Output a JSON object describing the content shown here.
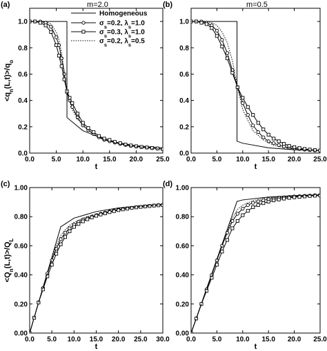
{
  "chart_data": [
    {
      "type": "line",
      "panel_tag": "(a)",
      "title": "m=2.0",
      "xlabel": "t",
      "ylabel": "<q_n(L,t)>/q_o",
      "xlim": [
        0,
        25
      ],
      "ylim": [
        0,
        1.1
      ],
      "xticks": [
        "0.0",
        "5.0",
        "10.0",
        "15.0",
        "20.0",
        "25.0"
      ],
      "yticks": [
        "0.0",
        "0.2",
        "0.4",
        "0.6",
        "0.8",
        "1.0"
      ],
      "grid": false,
      "legend_position": "top-right",
      "series": [
        {
          "name": "Homogeneous",
          "style": "solid",
          "marker": "none",
          "x": [
            0,
            7.0,
            7.0,
            10,
            15,
            20,
            25
          ],
          "y": [
            1.0,
            1.0,
            0.27,
            0.17,
            0.09,
            0.055,
            0.04
          ]
        },
        {
          "name": "σ_s=0.2, λ_s=1.0",
          "style": "solid",
          "marker": "circle",
          "x": [
            0,
            1,
            2,
            3,
            4,
            5,
            5.5,
            6,
            6.5,
            7,
            7.5,
            8,
            9,
            10,
            11,
            12,
            13,
            14,
            15,
            16,
            17,
            18,
            19,
            20,
            21,
            22,
            23,
            24,
            25
          ],
          "y": [
            1.0,
            1.0,
            1.0,
            0.99,
            0.96,
            0.88,
            0.82,
            0.72,
            0.6,
            0.46,
            0.4,
            0.35,
            0.27,
            0.21,
            0.175,
            0.145,
            0.12,
            0.1,
            0.09,
            0.08,
            0.07,
            0.062,
            0.055,
            0.05,
            0.045,
            0.042,
            0.038,
            0.035,
            0.03
          ]
        },
        {
          "name": "σ_s=0.3, λ_s=1.0",
          "style": "solid",
          "marker": "square",
          "x": [
            0,
            1,
            2,
            3,
            4,
            5,
            5.5,
            6,
            6.5,
            7,
            7.5,
            8,
            9,
            10,
            11,
            12,
            13,
            14,
            15,
            16,
            17,
            18,
            19,
            20,
            21,
            22,
            23,
            24,
            25
          ],
          "y": [
            1.0,
            1.0,
            0.99,
            0.97,
            0.92,
            0.82,
            0.74,
            0.66,
            0.56,
            0.47,
            0.42,
            0.38,
            0.3,
            0.23,
            0.19,
            0.16,
            0.13,
            0.11,
            0.1,
            0.085,
            0.075,
            0.065,
            0.058,
            0.052,
            0.047,
            0.043,
            0.039,
            0.035,
            0.03
          ]
        },
        {
          "name": "σ_s=0.2, λ_s=0.5",
          "style": "dotted",
          "marker": "none",
          "x": [
            0,
            1,
            2,
            3,
            4,
            5,
            5.5,
            6,
            6.5,
            7,
            7.5,
            8,
            9,
            10,
            12,
            14,
            16,
            18,
            20,
            22,
            25
          ],
          "y": [
            1.0,
            1.0,
            1.0,
            1.0,
            0.98,
            0.92,
            0.86,
            0.76,
            0.62,
            0.47,
            0.39,
            0.33,
            0.26,
            0.21,
            0.14,
            0.1,
            0.08,
            0.06,
            0.05,
            0.04,
            0.03
          ]
        }
      ]
    },
    {
      "type": "line",
      "panel_tag": "(b)",
      "title": "m=0.5",
      "xlabel": "t",
      "ylabel": "",
      "xlim": [
        0,
        25
      ],
      "ylim": [
        0,
        1.1
      ],
      "xticks": [
        "0.0",
        "5.0",
        "10.0",
        "15.0",
        "20.0",
        "25.0"
      ],
      "yticks": [
        "0.0",
        "0.2",
        "0.4",
        "0.6",
        "0.8",
        "1.0"
      ],
      "grid": false,
      "series": [
        {
          "name": "Homogeneous",
          "style": "solid",
          "marker": "none",
          "x": [
            0,
            8.9,
            8.9,
            10,
            15,
            20,
            25
          ],
          "y": [
            1.0,
            1.0,
            0.09,
            0.075,
            0.04,
            0.025,
            0.02
          ]
        },
        {
          "name": "σ_s=0.2, λ_s=1.0",
          "style": "solid",
          "marker": "circle",
          "x": [
            0,
            1,
            2,
            3,
            4,
            5,
            6,
            7,
            8,
            9,
            10,
            11,
            12,
            13,
            14,
            15,
            16,
            17,
            18,
            19,
            20,
            21,
            22,
            23,
            24,
            25
          ],
          "y": [
            1.0,
            1.0,
            1.0,
            0.99,
            0.97,
            0.93,
            0.86,
            0.76,
            0.63,
            0.5,
            0.38,
            0.29,
            0.21,
            0.16,
            0.12,
            0.09,
            0.075,
            0.06,
            0.05,
            0.04,
            0.035,
            0.03,
            0.026,
            0.023,
            0.02,
            0.018
          ]
        },
        {
          "name": "σ_s=0.3, λ_s=1.0",
          "style": "solid",
          "marker": "square",
          "x": [
            0,
            1,
            2,
            3,
            4,
            5,
            6,
            7,
            8,
            9,
            10,
            11,
            12,
            13,
            14,
            15,
            16,
            17,
            18,
            19,
            20,
            21,
            22,
            23,
            24,
            25
          ],
          "y": [
            1.0,
            1.0,
            0.99,
            0.98,
            0.95,
            0.89,
            0.81,
            0.72,
            0.61,
            0.5,
            0.42,
            0.35,
            0.29,
            0.23,
            0.18,
            0.14,
            0.11,
            0.09,
            0.07,
            0.055,
            0.045,
            0.038,
            0.032,
            0.027,
            0.023,
            0.02
          ]
        },
        {
          "name": "σ_s=0.2, λ_s=0.5",
          "style": "dotted",
          "marker": "none",
          "x": [
            0,
            1,
            2,
            3,
            4,
            5,
            6,
            7,
            8,
            9,
            10,
            12,
            14,
            16,
            18,
            20,
            22,
            25
          ],
          "y": [
            1.0,
            1.0,
            1.0,
            1.0,
            0.99,
            0.97,
            0.92,
            0.84,
            0.7,
            0.5,
            0.33,
            0.17,
            0.1,
            0.06,
            0.04,
            0.03,
            0.025,
            0.02
          ]
        }
      ]
    },
    {
      "type": "line",
      "panel_tag": "(c)",
      "title": "",
      "xlabel": "t",
      "ylabel": "<Q_n(L,t)>/Q_L",
      "xlim": [
        0,
        30
      ],
      "ylim": [
        0,
        1.0
      ],
      "xticks": [
        "0.0",
        "5.0",
        "10.0",
        "15.0",
        "20.0",
        "25.0",
        "30.0"
      ],
      "yticks": [
        "0.00",
        "0.20",
        "0.40",
        "0.60",
        "0.80",
        "1.00"
      ],
      "grid": false,
      "series": [
        {
          "name": "Homogeneous",
          "style": "solid",
          "marker": "none",
          "x": [
            0,
            7.0,
            10,
            15,
            20,
            25,
            30
          ],
          "y": [
            0.0,
            0.73,
            0.79,
            0.835,
            0.86,
            0.875,
            0.885
          ]
        },
        {
          "name": "σ_s=0.2, λ_s=1.0",
          "style": "solid",
          "marker": "circle",
          "x": [
            0,
            1,
            2,
            3,
            4,
            5,
            6,
            7,
            8,
            9,
            10,
            11,
            12,
            13,
            14,
            15,
            16,
            17,
            18,
            19,
            20,
            21,
            22,
            23,
            24,
            25,
            26,
            27,
            28,
            29,
            30
          ],
          "y": [
            0.0,
            0.105,
            0.21,
            0.31,
            0.41,
            0.5,
            0.58,
            0.645,
            0.69,
            0.72,
            0.745,
            0.765,
            0.78,
            0.79,
            0.8,
            0.81,
            0.82,
            0.828,
            0.835,
            0.842,
            0.848,
            0.853,
            0.857,
            0.861,
            0.865,
            0.868,
            0.871,
            0.874,
            0.877,
            0.879,
            0.881
          ]
        },
        {
          "name": "σ_s=0.3, λ_s=1.0",
          "style": "solid",
          "marker": "square",
          "x": [
            0,
            1,
            2,
            3,
            4,
            5,
            6,
            7,
            8,
            9,
            10,
            11,
            12,
            13,
            14,
            15,
            16,
            17,
            18,
            19,
            20,
            21,
            22,
            23,
            24,
            25,
            26,
            27,
            28,
            29,
            30
          ],
          "y": [
            0.0,
            0.105,
            0.21,
            0.3,
            0.39,
            0.47,
            0.545,
            0.61,
            0.66,
            0.7,
            0.73,
            0.75,
            0.768,
            0.782,
            0.795,
            0.806,
            0.815,
            0.823,
            0.831,
            0.838,
            0.845,
            0.85,
            0.855,
            0.86,
            0.864,
            0.867,
            0.87,
            0.873,
            0.876,
            0.878,
            0.88
          ]
        },
        {
          "name": "σ_s=0.2, λ_s=0.5",
          "style": "dotted",
          "marker": "none",
          "x": [
            0,
            2,
            4,
            5,
            6,
            7,
            8,
            9,
            10,
            12,
            14,
            16,
            18,
            20,
            22,
            24,
            26,
            28,
            30
          ],
          "y": [
            0.0,
            0.21,
            0.41,
            0.51,
            0.6,
            0.67,
            0.71,
            0.74,
            0.76,
            0.79,
            0.81,
            0.827,
            0.84,
            0.85,
            0.86,
            0.867,
            0.873,
            0.878,
            0.883
          ]
        }
      ]
    },
    {
      "type": "line",
      "panel_tag": "(d)",
      "title": "",
      "xlabel": "t",
      "ylabel": "",
      "xlim": [
        0,
        25
      ],
      "ylim": [
        0,
        1.0
      ],
      "xticks": [
        "0.0",
        "5.0",
        "10.0",
        "15.0",
        "20.0",
        "25.0"
      ],
      "yticks": [
        "0.00",
        "0.20",
        "0.40",
        "0.60",
        "0.80",
        "1.00"
      ],
      "grid": false,
      "series": [
        {
          "name": "Homogeneous",
          "style": "solid",
          "marker": "none",
          "x": [
            0,
            8.9,
            10,
            15,
            20,
            25
          ],
          "y": [
            0.0,
            0.905,
            0.915,
            0.935,
            0.945,
            0.95
          ]
        },
        {
          "name": "σ_s=0.2, λ_s=1.0",
          "style": "solid",
          "marker": "circle",
          "x": [
            0,
            1,
            2,
            3,
            4,
            5,
            6,
            7,
            8,
            9,
            10,
            11,
            12,
            13,
            14,
            15,
            16,
            17,
            18,
            19,
            20,
            21,
            22,
            23,
            24,
            25
          ],
          "y": [
            0.0,
            0.1,
            0.2,
            0.3,
            0.4,
            0.5,
            0.6,
            0.69,
            0.77,
            0.82,
            0.855,
            0.88,
            0.895,
            0.905,
            0.913,
            0.92,
            0.925,
            0.93,
            0.933,
            0.936,
            0.939,
            0.941,
            0.943,
            0.945,
            0.947,
            0.948
          ]
        },
        {
          "name": "σ_s=0.3, λ_s=1.0",
          "style": "solid",
          "marker": "square",
          "x": [
            0,
            1,
            2,
            3,
            4,
            5,
            6,
            7,
            8,
            9,
            10,
            11,
            12,
            13,
            14,
            15,
            16,
            17,
            18,
            19,
            20,
            21,
            22,
            23,
            24,
            25
          ],
          "y": [
            0.0,
            0.1,
            0.2,
            0.29,
            0.38,
            0.47,
            0.56,
            0.64,
            0.72,
            0.77,
            0.81,
            0.84,
            0.865,
            0.88,
            0.893,
            0.903,
            0.912,
            0.918,
            0.924,
            0.929,
            0.933,
            0.936,
            0.939,
            0.942,
            0.944,
            0.946
          ]
        },
        {
          "name": "σ_s=0.2, λ_s=0.5",
          "style": "dotted",
          "marker": "none",
          "x": [
            0,
            2,
            4,
            5,
            6,
            7,
            8,
            9,
            10,
            12,
            14,
            16,
            18,
            20,
            22,
            25
          ],
          "y": [
            0.0,
            0.2,
            0.4,
            0.5,
            0.6,
            0.7,
            0.79,
            0.85,
            0.88,
            0.91,
            0.925,
            0.933,
            0.939,
            0.943,
            0.946,
            0.95
          ]
        }
      ]
    }
  ]
}
